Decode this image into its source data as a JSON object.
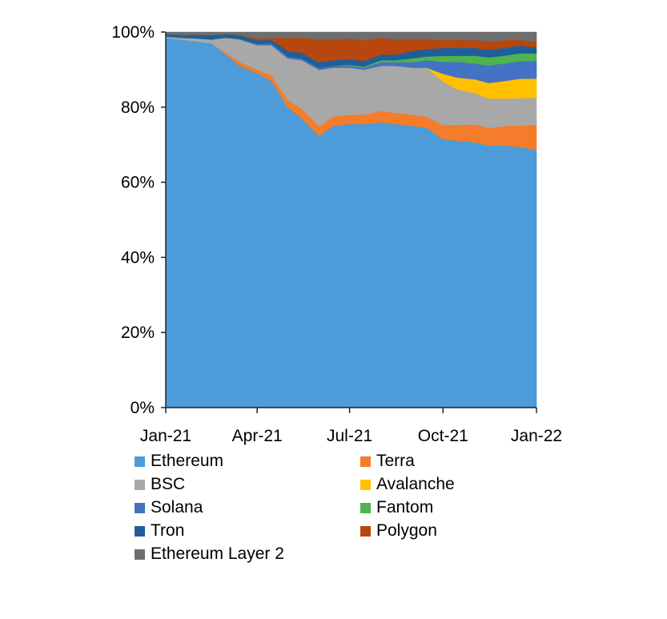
{
  "chart_data": {
    "type": "area",
    "stacked": true,
    "normalized": true,
    "title": "",
    "xlabel": "",
    "ylabel": "",
    "ylim": [
      0,
      100
    ],
    "y_ticks": [
      "0%",
      "20%",
      "40%",
      "60%",
      "80%",
      "100%"
    ],
    "x_ticks": [
      "Jan-21",
      "Apr-21",
      "Jul-21",
      "Oct-21",
      "Jan-22"
    ],
    "x": [
      "2021-01-01",
      "2021-01-15",
      "2021-02-01",
      "2021-02-15",
      "2021-03-01",
      "2021-03-15",
      "2021-04-01",
      "2021-04-15",
      "2021-05-01",
      "2021-05-15",
      "2021-06-01",
      "2021-06-15",
      "2021-07-01",
      "2021-07-15",
      "2021-08-01",
      "2021-08-15",
      "2021-09-01",
      "2021-09-15",
      "2021-10-01",
      "2021-10-15",
      "2021-11-01",
      "2021-11-15",
      "2021-12-01",
      "2021-12-15",
      "2022-01-01"
    ],
    "grid": false,
    "legend_position": "bottom",
    "series": [
      {
        "name": "Ethereum",
        "color": "#4e9bd9",
        "values": [
          98.5,
          98,
          97.5,
          97,
          94,
          91,
          89,
          87,
          80,
          77,
          72,
          75,
          75.5,
          75.5,
          76,
          75.5,
          75,
          74.5,
          67.5,
          67.5,
          67.5,
          67,
          67,
          67,
          66.5
        ]
      },
      {
        "name": "Terra",
        "color": "#f47c2a",
        "values": [
          0,
          0,
          0,
          0,
          0.5,
          1,
          1,
          1.5,
          2,
          2.5,
          2.5,
          2.5,
          2.5,
          2.5,
          3,
          3,
          3,
          3,
          3.5,
          4,
          4.5,
          4.5,
          5,
          5.5,
          6.5
        ]
      },
      {
        "name": "BSC",
        "color": "#a8a8a8",
        "values": [
          0.3,
          0.5,
          0.8,
          1,
          4,
          6,
          6.5,
          8,
          11,
          13,
          15,
          13,
          12.5,
          12,
          12,
          12.5,
          12.5,
          13,
          11,
          9,
          8,
          7.5,
          7,
          7,
          7
        ]
      },
      {
        "name": "Avalanche",
        "color": "#ffc000",
        "values": [
          0,
          0,
          0,
          0,
          0,
          0,
          0,
          0,
          0,
          0,
          0,
          0,
          0,
          0,
          0,
          0,
          0,
          0,
          2,
          3,
          3.5,
          4,
          4.5,
          5,
          5
        ]
      },
      {
        "name": "Solana",
        "color": "#4472c4",
        "values": [
          0,
          0,
          0,
          0,
          0,
          0.2,
          0.3,
          0.5,
          0.5,
          0.5,
          0.5,
          0.5,
          0.5,
          0.5,
          1,
          1,
          1.5,
          2,
          3,
          4,
          4,
          4.5,
          4.5,
          4.5,
          4.5
        ]
      },
      {
        "name": "Fantom",
        "color": "#4fb34f",
        "values": [
          0,
          0,
          0,
          0,
          0,
          0,
          0,
          0,
          0,
          0,
          0,
          0,
          0.3,
          0.3,
          0.5,
          0.5,
          1,
          1,
          1.5,
          1.5,
          2,
          2,
          2,
          2,
          2
        ]
      },
      {
        "name": "Tron",
        "color": "#1f5f99",
        "values": [
          0.7,
          0.8,
          1,
          1.2,
          1,
          1,
          1,
          1,
          1.5,
          1.5,
          1.5,
          1.5,
          1.5,
          1.5,
          1.5,
          1.5,
          2,
          2,
          2,
          2,
          2,
          2,
          2,
          2,
          1.5
        ]
      },
      {
        "name": "Polygon",
        "color": "#b8470f",
        "values": [
          0,
          0,
          0,
          0,
          0,
          0,
          0.5,
          0.5,
          3.5,
          4,
          6,
          5.5,
          5.5,
          5.5,
          4.5,
          4,
          3,
          2.5,
          2,
          2,
          2,
          2,
          2,
          1.5,
          1.5
        ]
      },
      {
        "name": "Ethereum Layer 2",
        "color": "#6e6e6e",
        "values": [
          0.5,
          0.7,
          0.7,
          0.8,
          0.5,
          0.8,
          1.7,
          1.5,
          1.5,
          1.5,
          2,
          2,
          1.7,
          2.2,
          1.5,
          2,
          2,
          2,
          2,
          2,
          2,
          2.5,
          2,
          2,
          2.5
        ]
      }
    ]
  }
}
